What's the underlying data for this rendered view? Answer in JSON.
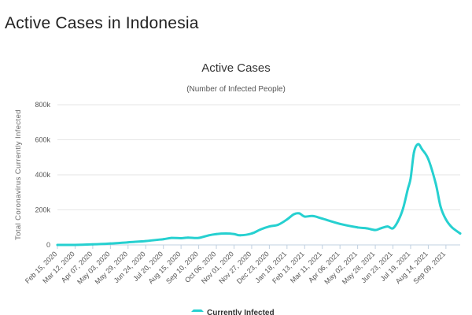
{
  "page": {
    "heading": "Active Cases in Indonesia"
  },
  "colors": {
    "series": "#26d0d0",
    "grid": "#e6e6e6",
    "axis": "#c0d0e0"
  },
  "chart_data": {
    "type": "line",
    "title": "Active Cases",
    "subtitle": "(Number of Infected People)",
    "xlabel": "",
    "ylabel": "Total Coronavirus Currently Infected",
    "ylim": [
      0,
      800000
    ],
    "yticks": [
      {
        "value": 0,
        "label": "0"
      },
      {
        "value": 200000,
        "label": "200k"
      },
      {
        "value": 400000,
        "label": "400k"
      },
      {
        "value": 600000,
        "label": "600k"
      },
      {
        "value": 800000,
        "label": "800k"
      }
    ],
    "xlim": [
      "Feb 15, 2020",
      "Sep 30, 2021"
    ],
    "x_tick_labels": [
      "Feb 15, 2020",
      "Mar 12, 2020",
      "Apr 07, 2020",
      "May 03, 2020",
      "May 29, 2020",
      "Jun 24, 2020",
      "Jul 20, 2020",
      "Aug 15, 2020",
      "Sep 10, 2020",
      "Oct 06, 2020",
      "Nov 01, 2020",
      "Nov 27, 2020",
      "Dec 23, 2020",
      "Jan 18, 2021",
      "Feb 13, 2021",
      "Mar 11, 2021",
      "Apr 06, 2021",
      "May 02, 2021",
      "May 28, 2021",
      "Jun 23, 2021",
      "Jul 19, 2021",
      "Aug 14, 2021",
      "Sep 09, 2021"
    ],
    "grid": true,
    "legend_position": "bottom",
    "series": [
      {
        "name": "Currently Infected",
        "x": [
          "Feb 15, 2020",
          "Mar 12, 2020",
          "Apr 07, 2020",
          "May 03, 2020",
          "May 29, 2020",
          "Jun 24, 2020",
          "Jul 20, 2020",
          "Aug 01, 2020",
          "Aug 15, 2020",
          "Aug 25, 2020",
          "Sep 10, 2020",
          "Sep 25, 2020",
          "Oct 06, 2020",
          "Oct 20, 2020",
          "Nov 01, 2020",
          "Nov 10, 2020",
          "Nov 27, 2020",
          "Dec 10, 2020",
          "Dec 23, 2020",
          "Jan 05, 2021",
          "Jan 18, 2021",
          "Jan 28, 2021",
          "Feb 05, 2021",
          "Feb 13, 2021",
          "Feb 25, 2021",
          "Mar 11, 2021",
          "Apr 06, 2021",
          "May 02, 2021",
          "May 15, 2021",
          "May 28, 2021",
          "Jun 05, 2021",
          "Jun 15, 2021",
          "Jun 23, 2021",
          "Jul 01, 2021",
          "Jul 08, 2021",
          "Jul 15, 2021",
          "Jul 19, 2021",
          "Jul 24, 2021",
          "Jul 30, 2021",
          "Aug 05, 2021",
          "Aug 14, 2021",
          "Aug 25, 2021",
          "Sep 01, 2021",
          "Sep 09, 2021",
          "Sep 18, 2021",
          "Sep 30, 2021"
        ],
        "values": [
          0,
          0,
          3000,
          8000,
          15000,
          22000,
          33000,
          40000,
          38000,
          42000,
          40000,
          55000,
          62000,
          65000,
          62000,
          55000,
          65000,
          88000,
          105000,
          115000,
          145000,
          175000,
          180000,
          162000,
          165000,
          150000,
          120000,
          100000,
          95000,
          85000,
          95000,
          105000,
          95000,
          140000,
          210000,
          320000,
          380000,
          530000,
          575000,
          545000,
          490000,
          350000,
          220000,
          145000,
          100000,
          65000
        ]
      }
    ]
  }
}
